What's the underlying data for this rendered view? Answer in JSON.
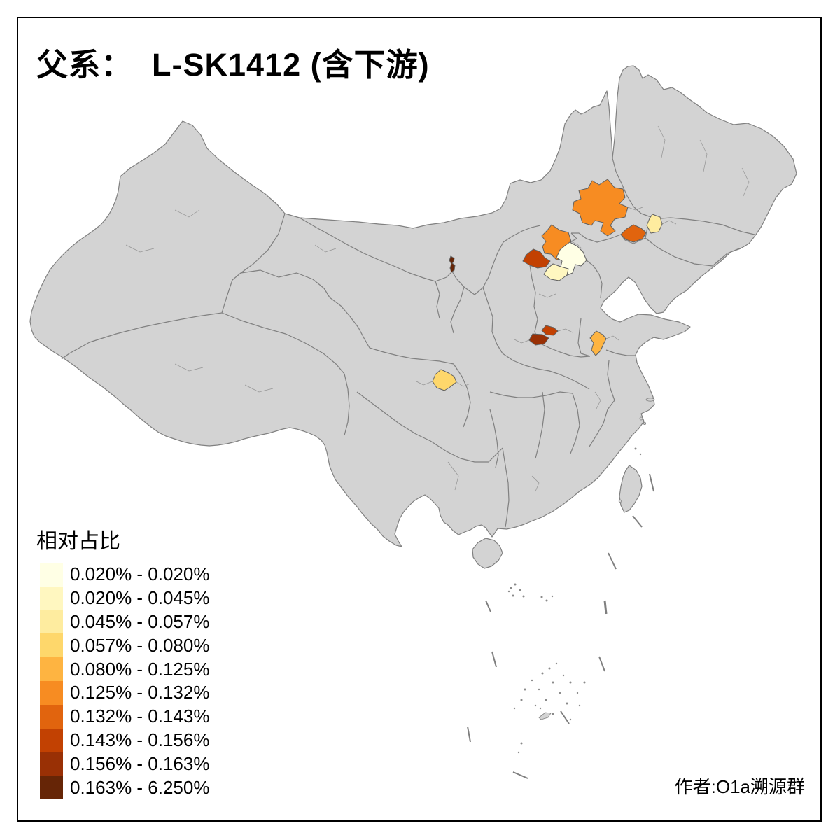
{
  "title": "父系：  L-SK1412 (含下游)",
  "author": "作者:O1a溯源群",
  "legend": {
    "title": "相对占比",
    "classes": [
      {
        "label": "0.020% - 0.020%",
        "color": "#FFFFE5"
      },
      {
        "label": "0.020% - 0.045%",
        "color": "#FFF7C0"
      },
      {
        "label": "0.045% - 0.057%",
        "color": "#FEEC9F"
      },
      {
        "label": "0.057% - 0.080%",
        "color": "#FED76B"
      },
      {
        "label": "0.080% - 0.125%",
        "color": "#FEB441"
      },
      {
        "label": "0.125% - 0.132%",
        "color": "#F78C22"
      },
      {
        "label": "0.132% - 0.143%",
        "color": "#E1640E"
      },
      {
        "label": "0.143% - 0.156%",
        "color": "#C24102"
      },
      {
        "label": "0.156% - 0.163%",
        "color": "#993005"
      },
      {
        "label": "0.163% - 6.250%",
        "color": "#662506"
      }
    ]
  },
  "map": {
    "land_fill": "#D3D3D3",
    "border_color": "#808080",
    "sea_fill": "#FFFFFF",
    "frame_color": "#000000",
    "regions": [
      {
        "id": "region-beijing",
        "legend_class": 1
      },
      {
        "id": "region-hebei-central",
        "legend_class": 2
      },
      {
        "id": "region-liaoning-east",
        "legend_class": 3
      },
      {
        "id": "region-sichuan-central",
        "legend_class": 4
      },
      {
        "id": "region-shandong-west",
        "legend_class": 5
      },
      {
        "id": "region-neimeng-chifeng",
        "legend_class": 6
      },
      {
        "id": "region-hebei-northwest",
        "legend_class": 6
      },
      {
        "id": "region-liaoning-west",
        "legend_class": 7
      },
      {
        "id": "region-shanxi-north",
        "legend_class": 8
      },
      {
        "id": "region-henan-north",
        "legend_class": 8
      },
      {
        "id": "region-henan-west",
        "legend_class": 9
      },
      {
        "id": "region-neimeng-sliver",
        "legend_class": 10
      }
    ]
  }
}
